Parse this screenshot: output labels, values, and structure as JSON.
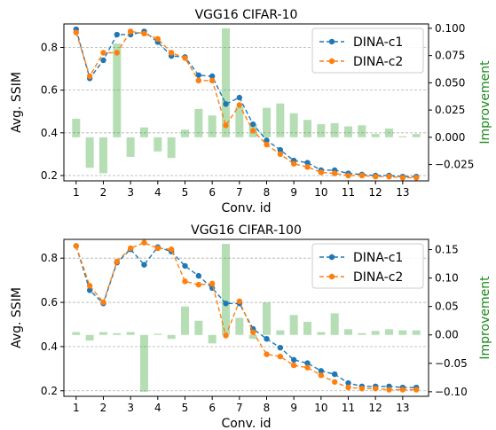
{
  "chart_data": [
    {
      "type": "line",
      "title": "VGG16 CIFAR-10",
      "xlabel": "Conv. id",
      "ylabel": "Avg. SSIM",
      "y2label": "Improvement",
      "xticks": [
        1,
        2,
        3,
        4,
        5,
        6,
        7,
        8,
        9,
        10,
        11,
        12,
        13
      ],
      "yticks": [
        "0.2",
        "0.4",
        "0.6",
        "0.8"
      ],
      "y2ticks": [
        "−0.025",
        "0.000",
        "0.025",
        "0.050",
        "0.075",
        "0.100"
      ],
      "xlim": [
        0.55,
        13.95
      ],
      "ylim": [
        0.175,
        0.91
      ],
      "y2lim": [
        -0.04,
        0.104
      ],
      "x": [
        1,
        1.5,
        2,
        2.5,
        3,
        3.5,
        4,
        4.5,
        5,
        5.5,
        6,
        6.5,
        7,
        7.5,
        8,
        8.5,
        9,
        9.5,
        10,
        10.5,
        11,
        11.5,
        12,
        12.5,
        13,
        13.5
      ],
      "series": [
        {
          "name": "DINA-c1",
          "color": "#1f77b4",
          "values": [
            0.885,
            0.655,
            0.74,
            0.86,
            0.86,
            0.875,
            0.825,
            0.76,
            0.755,
            0.67,
            0.665,
            0.535,
            0.565,
            0.44,
            0.365,
            0.32,
            0.27,
            0.26,
            0.225,
            0.225,
            0.21,
            0.205,
            0.2,
            0.2,
            0.195,
            0.195
          ]
        },
        {
          "name": "DINA-c2",
          "color": "#ff7f0e",
          "values": [
            0.87,
            0.665,
            0.775,
            0.775,
            0.875,
            0.865,
            0.84,
            0.775,
            0.75,
            0.645,
            0.645,
            0.435,
            0.53,
            0.41,
            0.345,
            0.3,
            0.255,
            0.24,
            0.215,
            0.21,
            0.2,
            0.2,
            0.195,
            0.195,
            0.19,
            0.19
          ]
        }
      ],
      "bars": {
        "color": "#2ca02c",
        "values": [
          0.017,
          -0.028,
          -0.033,
          0.086,
          -0.018,
          0.009,
          -0.013,
          -0.019,
          0.007,
          0.026,
          0.02,
          0.1,
          0.028,
          0.012,
          0.027,
          0.031,
          0.022,
          0.016,
          0.012,
          0.013,
          0.01,
          0.011,
          0.003,
          0.008,
          0.001,
          0.003
        ]
      },
      "legend": "top-right",
      "grid": "horizontal dashed"
    },
    {
      "type": "line",
      "title": "VGG16 CIFAR-100",
      "xlabel": "Conv. id",
      "ylabel": "Avg. SSIM",
      "y2label": "Improvement",
      "xticks": [
        1,
        2,
        3,
        4,
        5,
        6,
        7,
        8,
        9,
        10,
        11,
        12,
        13
      ],
      "yticks": [
        "0.2",
        "0.4",
        "0.6",
        "0.8"
      ],
      "y2ticks": [
        "−0.10",
        "−0.05",
        "0.00",
        "0.05",
        "0.10",
        "0.15"
      ],
      "xlim": [
        0.55,
        13.95
      ],
      "ylim": [
        0.175,
        0.885
      ],
      "y2lim": [
        -0.108,
        0.168
      ],
      "x": [
        1,
        1.5,
        2,
        2.5,
        3,
        3.5,
        4,
        4.5,
        5,
        5.5,
        6,
        6.5,
        7,
        7.5,
        8,
        8.5,
        9,
        9.5,
        10,
        10.5,
        11,
        11.5,
        12,
        12.5,
        13,
        13.5
      ],
      "series": [
        {
          "name": "DINA-c1",
          "color": "#1f77b4",
          "values": [
            0.855,
            0.655,
            0.595,
            0.78,
            0.84,
            0.77,
            0.85,
            0.83,
            0.765,
            0.72,
            0.665,
            0.595,
            0.595,
            0.48,
            0.435,
            0.395,
            0.34,
            0.325,
            0.29,
            0.275,
            0.235,
            0.22,
            0.22,
            0.22,
            0.215,
            0.215
          ]
        },
        {
          "name": "DINA-c2",
          "color": "#ff7f0e",
          "values": [
            0.855,
            0.675,
            0.6,
            0.785,
            0.845,
            0.87,
            0.845,
            0.84,
            0.695,
            0.68,
            0.685,
            0.45,
            0.605,
            0.465,
            0.365,
            0.355,
            0.315,
            0.305,
            0.27,
            0.24,
            0.215,
            0.21,
            0.21,
            0.205,
            0.205,
            0.205
          ]
        }
      ],
      "bars": {
        "color": "#2ca02c",
        "values": [
          0.005,
          -0.01,
          0.005,
          0.003,
          0.005,
          -0.1,
          0.002,
          -0.007,
          0.05,
          0.025,
          -0.015,
          0.16,
          0.03,
          -0.007,
          0.057,
          0.008,
          0.035,
          0.023,
          0.005,
          0.038,
          0.01,
          0.003,
          0.007,
          0.01,
          0.008,
          0.008
        ]
      },
      "legend": "top-right",
      "grid": "horizontal dashed"
    }
  ]
}
